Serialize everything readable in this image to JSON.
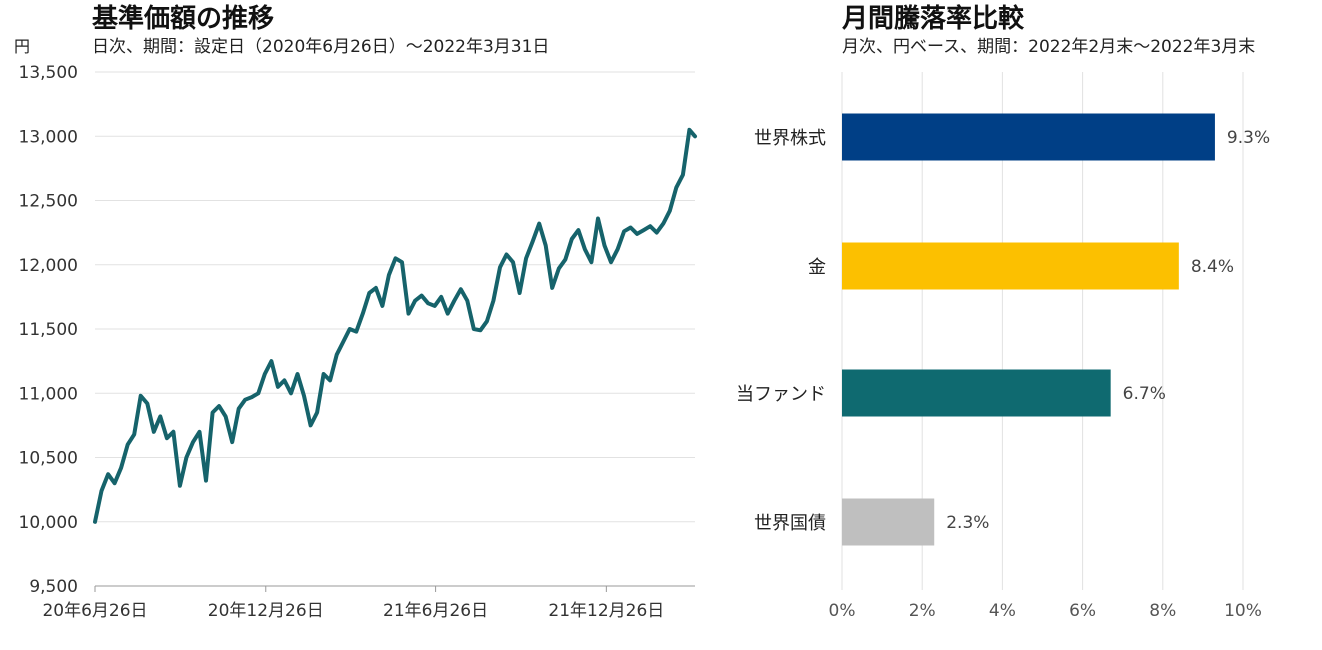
{
  "chart_data": [
    {
      "type": "line",
      "title": "基準価額の推移",
      "subtitle": "日次、期間：設定日（2020年6月26日）～2022年3月31日",
      "ylabel": "円",
      "ylim": [
        9500,
        13500
      ],
      "yticks": [
        "9,500",
        "10,000",
        "10,500",
        "11,000",
        "11,500",
        "12,000",
        "12,500",
        "13,000",
        "13,500"
      ],
      "xticks": [
        "20年6月26日",
        "20年12月26日",
        "21年6月26日",
        "21年12月26日"
      ],
      "grid": true,
      "color": "#16636b",
      "series": [
        {
          "x": [
            "2020-06-26",
            "2020-07-03",
            "2020-07-10",
            "2020-07-17",
            "2020-07-24",
            "2020-07-31",
            "2020-08-07",
            "2020-08-14",
            "2020-08-21",
            "2020-08-28",
            "2020-09-04",
            "2020-09-11",
            "2020-09-18",
            "2020-09-25",
            "2020-10-02",
            "2020-10-09",
            "2020-10-16",
            "2020-10-23",
            "2020-10-30",
            "2020-11-06",
            "2020-11-13",
            "2020-11-20",
            "2020-11-27",
            "2020-12-04",
            "2020-12-11",
            "2020-12-18",
            "2020-12-25",
            "2021-01-01",
            "2021-01-08",
            "2021-01-15",
            "2021-01-22",
            "2021-01-29",
            "2021-02-05",
            "2021-02-12",
            "2021-02-19",
            "2021-02-26",
            "2021-03-05",
            "2021-03-12",
            "2021-03-19",
            "2021-03-26",
            "2021-04-02",
            "2021-04-09",
            "2021-04-16",
            "2021-04-23",
            "2021-04-30",
            "2021-05-07",
            "2021-05-14",
            "2021-05-21",
            "2021-05-28",
            "2021-06-04",
            "2021-06-11",
            "2021-06-18",
            "2021-06-25",
            "2021-07-02",
            "2021-07-09",
            "2021-07-16",
            "2021-07-23",
            "2021-07-30",
            "2021-08-06",
            "2021-08-13",
            "2021-08-20",
            "2021-08-27",
            "2021-09-03",
            "2021-09-10",
            "2021-09-17",
            "2021-09-24",
            "2021-10-01",
            "2021-10-08",
            "2021-10-15",
            "2021-10-22",
            "2021-10-29",
            "2021-11-05",
            "2021-11-12",
            "2021-11-19",
            "2021-11-26",
            "2021-12-03",
            "2021-12-10",
            "2021-12-17",
            "2021-12-24",
            "2021-12-31",
            "2022-01-07",
            "2022-01-14",
            "2022-01-21",
            "2022-01-28",
            "2022-02-04",
            "2022-02-11",
            "2022-02-18",
            "2022-02-25",
            "2022-03-04",
            "2022-03-11",
            "2022-03-18",
            "2022-03-25",
            "2022-03-31"
          ],
          "values": [
            10000,
            10240,
            10370,
            10300,
            10420,
            10600,
            10680,
            10980,
            10920,
            10700,
            10820,
            10650,
            10700,
            10280,
            10500,
            10620,
            10700,
            10320,
            10850,
            10900,
            10820,
            10620,
            10880,
            10950,
            10970,
            11000,
            11150,
            11250,
            11050,
            11100,
            11000,
            11150,
            10980,
            10750,
            10850,
            11150,
            11100,
            11300,
            11400,
            11500,
            11480,
            11620,
            11780,
            11820,
            11680,
            11920,
            12050,
            12020,
            11620,
            11720,
            11760,
            11700,
            11680,
            11750,
            11620,
            11720,
            11810,
            11720,
            11500,
            11490,
            11560,
            11720,
            11980,
            12080,
            12020,
            11780,
            12050,
            12180,
            12320,
            12150,
            11820,
            11970,
            12040,
            12200,
            12270,
            12120,
            12020,
            12360,
            12150,
            12020,
            12120,
            12260,
            12290,
            12240,
            12270,
            12300,
            12250,
            12320,
            12420,
            12600,
            12700,
            13050,
            13000
          ]
        }
      ]
    },
    {
      "type": "bar",
      "orientation": "horizontal",
      "title": "月間騰落率比較",
      "subtitle": "月次、円ベース、期間：2022年2月末～2022年3月末",
      "categories": [
        "世界株式",
        "金",
        "当ファンド",
        "世界国債"
      ],
      "values": [
        9.3,
        8.4,
        6.7,
        2.3
      ],
      "labels": [
        "9.3%",
        "8.4%",
        "6.7%",
        "2.3%"
      ],
      "colors": [
        "#003f86",
        "#fcc000",
        "#0f6a70",
        "#bfbfbf"
      ],
      "xlim": [
        0,
        10
      ],
      "xticks": [
        "0%",
        "2%",
        "4%",
        "6%",
        "8%",
        "10%"
      ],
      "grid": true
    }
  ]
}
